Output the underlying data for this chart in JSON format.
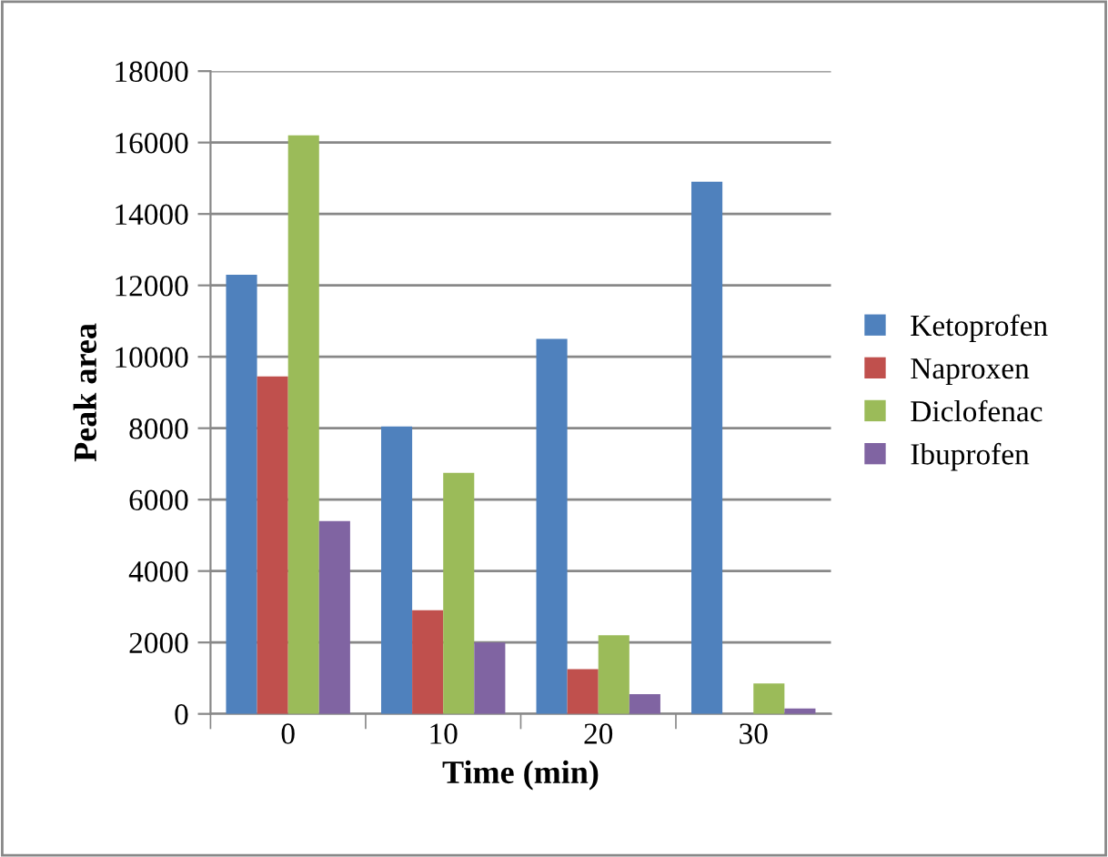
{
  "chart_data": {
    "type": "bar",
    "xlabel": "Time (min)",
    "ylabel": "Peak area",
    "categories": [
      "0",
      "10",
      "20",
      "30"
    ],
    "series": [
      {
        "name": "Ketoprofen",
        "color": "#4f81bd",
        "values": [
          12300,
          8050,
          10500,
          14900
        ]
      },
      {
        "name": "Naproxen",
        "color": "#c0504d",
        "values": [
          9450,
          2900,
          1250,
          0
        ]
      },
      {
        "name": "Diclofenac",
        "color": "#9bbb59",
        "values": [
          16200,
          6750,
          2200,
          850
        ]
      },
      {
        "name": "Ibuprofen",
        "color": "#8064a2",
        "values": [
          5400,
          2000,
          550,
          150
        ]
      }
    ],
    "ylim": [
      0,
      18000
    ],
    "yticks": [
      0,
      2000,
      4000,
      6000,
      8000,
      10000,
      12000,
      14000,
      16000,
      18000
    ],
    "grid": "y",
    "legend": "right"
  }
}
